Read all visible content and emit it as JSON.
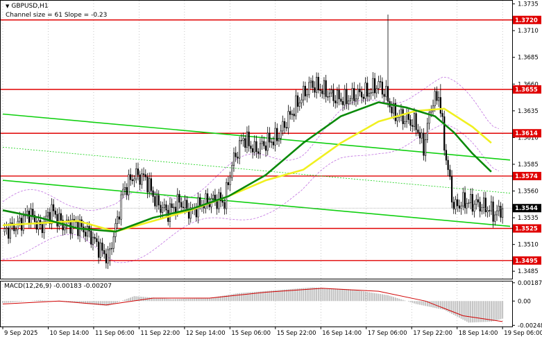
{
  "header": {
    "symbol": "GBPUSD,H1",
    "channel": "Channel size = 61 Slope = -0.23",
    "macd_label": "MACD(12,26,9) -0.00183 -0.00207"
  },
  "colors": {
    "red_level": "#e00000",
    "channel": "#10d010",
    "ma_fast": "#0a8a0a",
    "ma_slow": "#f0f020",
    "bands": "#c070e0",
    "signal": "#d00000",
    "histogram": "#bdbdbd",
    "candle": "#000000"
  },
  "chart_data": [
    {
      "type": "candlestick",
      "symbol": "GBPUSD",
      "timeframe": "H1",
      "ylim": [
        1.3478,
        1.3738
      ],
      "y_ticks": [
        "1.3735",
        "1.3710",
        "1.3685",
        "1.3660",
        "1.3635",
        "1.3610",
        "1.3585",
        "1.3560",
        "1.3535",
        "1.3510",
        "1.3485"
      ],
      "x_ticks": [
        "9 Sep 2025",
        "10 Sep 14:00",
        "11 Sep 06:00",
        "11 Sep 22:00",
        "12 Sep 14:00",
        "15 Sep 06:00",
        "15 Sep 22:00",
        "16 Sep 14:00",
        "17 Sep 06:00",
        "17 Sep 22:00",
        "18 Sep 14:00",
        "19 Sep 06:00"
      ],
      "levels": [
        "1.3720",
        "1.3655",
        "1.3614",
        "1.3574",
        "1.3525",
        "1.3495"
      ],
      "current_price": "1.3544",
      "path_points": [
        {
          "bar": 0,
          "price": 1.3522
        },
        {
          "bar": 8,
          "price": 1.3528
        },
        {
          "bar": 14,
          "price": 1.354
        },
        {
          "bar": 20,
          "price": 1.3525
        },
        {
          "bar": 26,
          "price": 1.3542
        },
        {
          "bar": 32,
          "price": 1.3528
        },
        {
          "bar": 38,
          "price": 1.353
        },
        {
          "bar": 46,
          "price": 1.352
        },
        {
          "bar": 52,
          "price": 1.3505
        },
        {
          "bar": 56,
          "price": 1.3498
        },
        {
          "bar": 60,
          "price": 1.3525
        },
        {
          "bar": 64,
          "price": 1.356
        },
        {
          "bar": 70,
          "price": 1.3575
        },
        {
          "bar": 76,
          "price": 1.3572
        },
        {
          "bar": 82,
          "price": 1.3548
        },
        {
          "bar": 88,
          "price": 1.354
        },
        {
          "bar": 94,
          "price": 1.355
        },
        {
          "bar": 100,
          "price": 1.354
        },
        {
          "bar": 106,
          "price": 1.3548
        },
        {
          "bar": 112,
          "price": 1.3552
        },
        {
          "bar": 118,
          "price": 1.355
        },
        {
          "bar": 122,
          "price": 1.3585
        },
        {
          "bar": 128,
          "price": 1.361
        },
        {
          "bar": 134,
          "price": 1.3598
        },
        {
          "bar": 140,
          "price": 1.3605
        },
        {
          "bar": 146,
          "price": 1.361
        },
        {
          "bar": 152,
          "price": 1.3628
        },
        {
          "bar": 158,
          "price": 1.3645
        },
        {
          "bar": 164,
          "price": 1.366
        },
        {
          "bar": 170,
          "price": 1.3655
        },
        {
          "bar": 176,
          "price": 1.3648
        },
        {
          "bar": 182,
          "price": 1.3645
        },
        {
          "bar": 188,
          "price": 1.365
        },
        {
          "bar": 194,
          "price": 1.3652
        },
        {
          "bar": 200,
          "price": 1.366
        },
        {
          "bar": 204,
          "price": 1.365
        },
        {
          "bar": 208,
          "price": 1.3632
        },
        {
          "bar": 214,
          "price": 1.3628
        },
        {
          "bar": 220,
          "price": 1.3622
        },
        {
          "bar": 224,
          "price": 1.36
        },
        {
          "bar": 228,
          "price": 1.364
        },
        {
          "bar": 232,
          "price": 1.365
        },
        {
          "bar": 236,
          "price": 1.359
        },
        {
          "bar": 240,
          "price": 1.3545
        },
        {
          "bar": 246,
          "price": 1.355
        },
        {
          "bar": 252,
          "price": 1.3548
        },
        {
          "bar": 258,
          "price": 1.3544
        },
        {
          "bar": 262,
          "price": 1.3538
        },
        {
          "bar": 266,
          "price": 1.3544
        }
      ],
      "spikes": [
        {
          "bar": 205,
          "high": 1.3725
        },
        {
          "bar": 57,
          "low": 1.349
        },
        {
          "bar": 233,
          "high": 1.366
        }
      ],
      "ma_fast": [
        {
          "bar": 0,
          "price": 1.3542
        },
        {
          "bar": 20,
          "price": 1.3535
        },
        {
          "bar": 40,
          "price": 1.3525
        },
        {
          "bar": 60,
          "price": 1.3522
        },
        {
          "bar": 80,
          "price": 1.3535
        },
        {
          "bar": 100,
          "price": 1.3543
        },
        {
          "bar": 120,
          "price": 1.3555
        },
        {
          "bar": 140,
          "price": 1.3575
        },
        {
          "bar": 160,
          "price": 1.3605
        },
        {
          "bar": 180,
          "price": 1.363
        },
        {
          "bar": 200,
          "price": 1.3643
        },
        {
          "bar": 215,
          "price": 1.3638
        },
        {
          "bar": 230,
          "price": 1.363
        },
        {
          "bar": 240,
          "price": 1.3615
        },
        {
          "bar": 250,
          "price": 1.3595
        },
        {
          "bar": 260,
          "price": 1.3578
        }
      ],
      "ma_slow": [
        {
          "bar": 0,
          "price": 1.3528
        },
        {
          "bar": 20,
          "price": 1.353
        },
        {
          "bar": 40,
          "price": 1.3532
        },
        {
          "bar": 60,
          "price": 1.3522
        },
        {
          "bar": 80,
          "price": 1.3532
        },
        {
          "bar": 100,
          "price": 1.3542
        },
        {
          "bar": 120,
          "price": 1.3555
        },
        {
          "bar": 140,
          "price": 1.357
        },
        {
          "bar": 160,
          "price": 1.358
        },
        {
          "bar": 180,
          "price": 1.3605
        },
        {
          "bar": 200,
          "price": 1.3625
        },
        {
          "bar": 220,
          "price": 1.3635
        },
        {
          "bar": 235,
          "price": 1.3637
        },
        {
          "bar": 250,
          "price": 1.362
        },
        {
          "bar": 260,
          "price": 1.3605
        }
      ],
      "channel_lines": [
        {
          "name": "",
          "from": {
            "bar": 0,
            "price": 1.3632
          },
          "to": {
            "bar": 270,
            "price": 1.3589
          }
        },
        {
          "name": "",
          "from": {
            "bar": 0,
            "price": 1.357
          },
          "to": {
            "bar": 270,
            "price": 1.3527
          }
        },
        {
          "name": "",
          "from": {
            "bar": 0,
            "price": 1.3601
          },
          "to": {
            "bar": 270,
            "price": 1.3558
          }
        }
      ]
    },
    {
      "type": "histogram",
      "indicator": "MACD(12,26,9)",
      "value_label": "-0.00183",
      "signal_label": "-0.00207",
      "y_ticks": [
        "0.00187",
        "0.00",
        "-0.00248"
      ],
      "ylim": [
        -0.0026,
        0.002
      ],
      "histogram_points": [
        {
          "bar": 0,
          "value": -0.0002
        },
        {
          "bar": 20,
          "value": 0.0001
        },
        {
          "bar": 40,
          "value": -0.0002
        },
        {
          "bar": 56,
          "value": -0.0005
        },
        {
          "bar": 70,
          "value": 0.0005
        },
        {
          "bar": 90,
          "value": 0.0002
        },
        {
          "bar": 110,
          "value": 0.0003
        },
        {
          "bar": 125,
          "value": 0.0008
        },
        {
          "bar": 145,
          "value": 0.0011
        },
        {
          "bar": 165,
          "value": 0.0014
        },
        {
          "bar": 185,
          "value": 0.0012
        },
        {
          "bar": 205,
          "value": 0.0006
        },
        {
          "bar": 220,
          "value": -0.0003
        },
        {
          "bar": 235,
          "value": -0.0009
        },
        {
          "bar": 248,
          "value": -0.0022
        },
        {
          "bar": 260,
          "value": -0.0021
        },
        {
          "bar": 266,
          "value": -0.0018
        }
      ],
      "signal_points": [
        {
          "bar": 0,
          "value": -0.0003
        },
        {
          "bar": 30,
          "value": 0.0
        },
        {
          "bar": 55,
          "value": -0.0004
        },
        {
          "bar": 80,
          "value": 0.0003
        },
        {
          "bar": 110,
          "value": 0.0003
        },
        {
          "bar": 140,
          "value": 0.0009
        },
        {
          "bar": 170,
          "value": 0.0013
        },
        {
          "bar": 200,
          "value": 0.001
        },
        {
          "bar": 225,
          "value": 0.0
        },
        {
          "bar": 245,
          "value": -0.0015
        },
        {
          "bar": 266,
          "value": -0.0021
        }
      ]
    }
  ]
}
